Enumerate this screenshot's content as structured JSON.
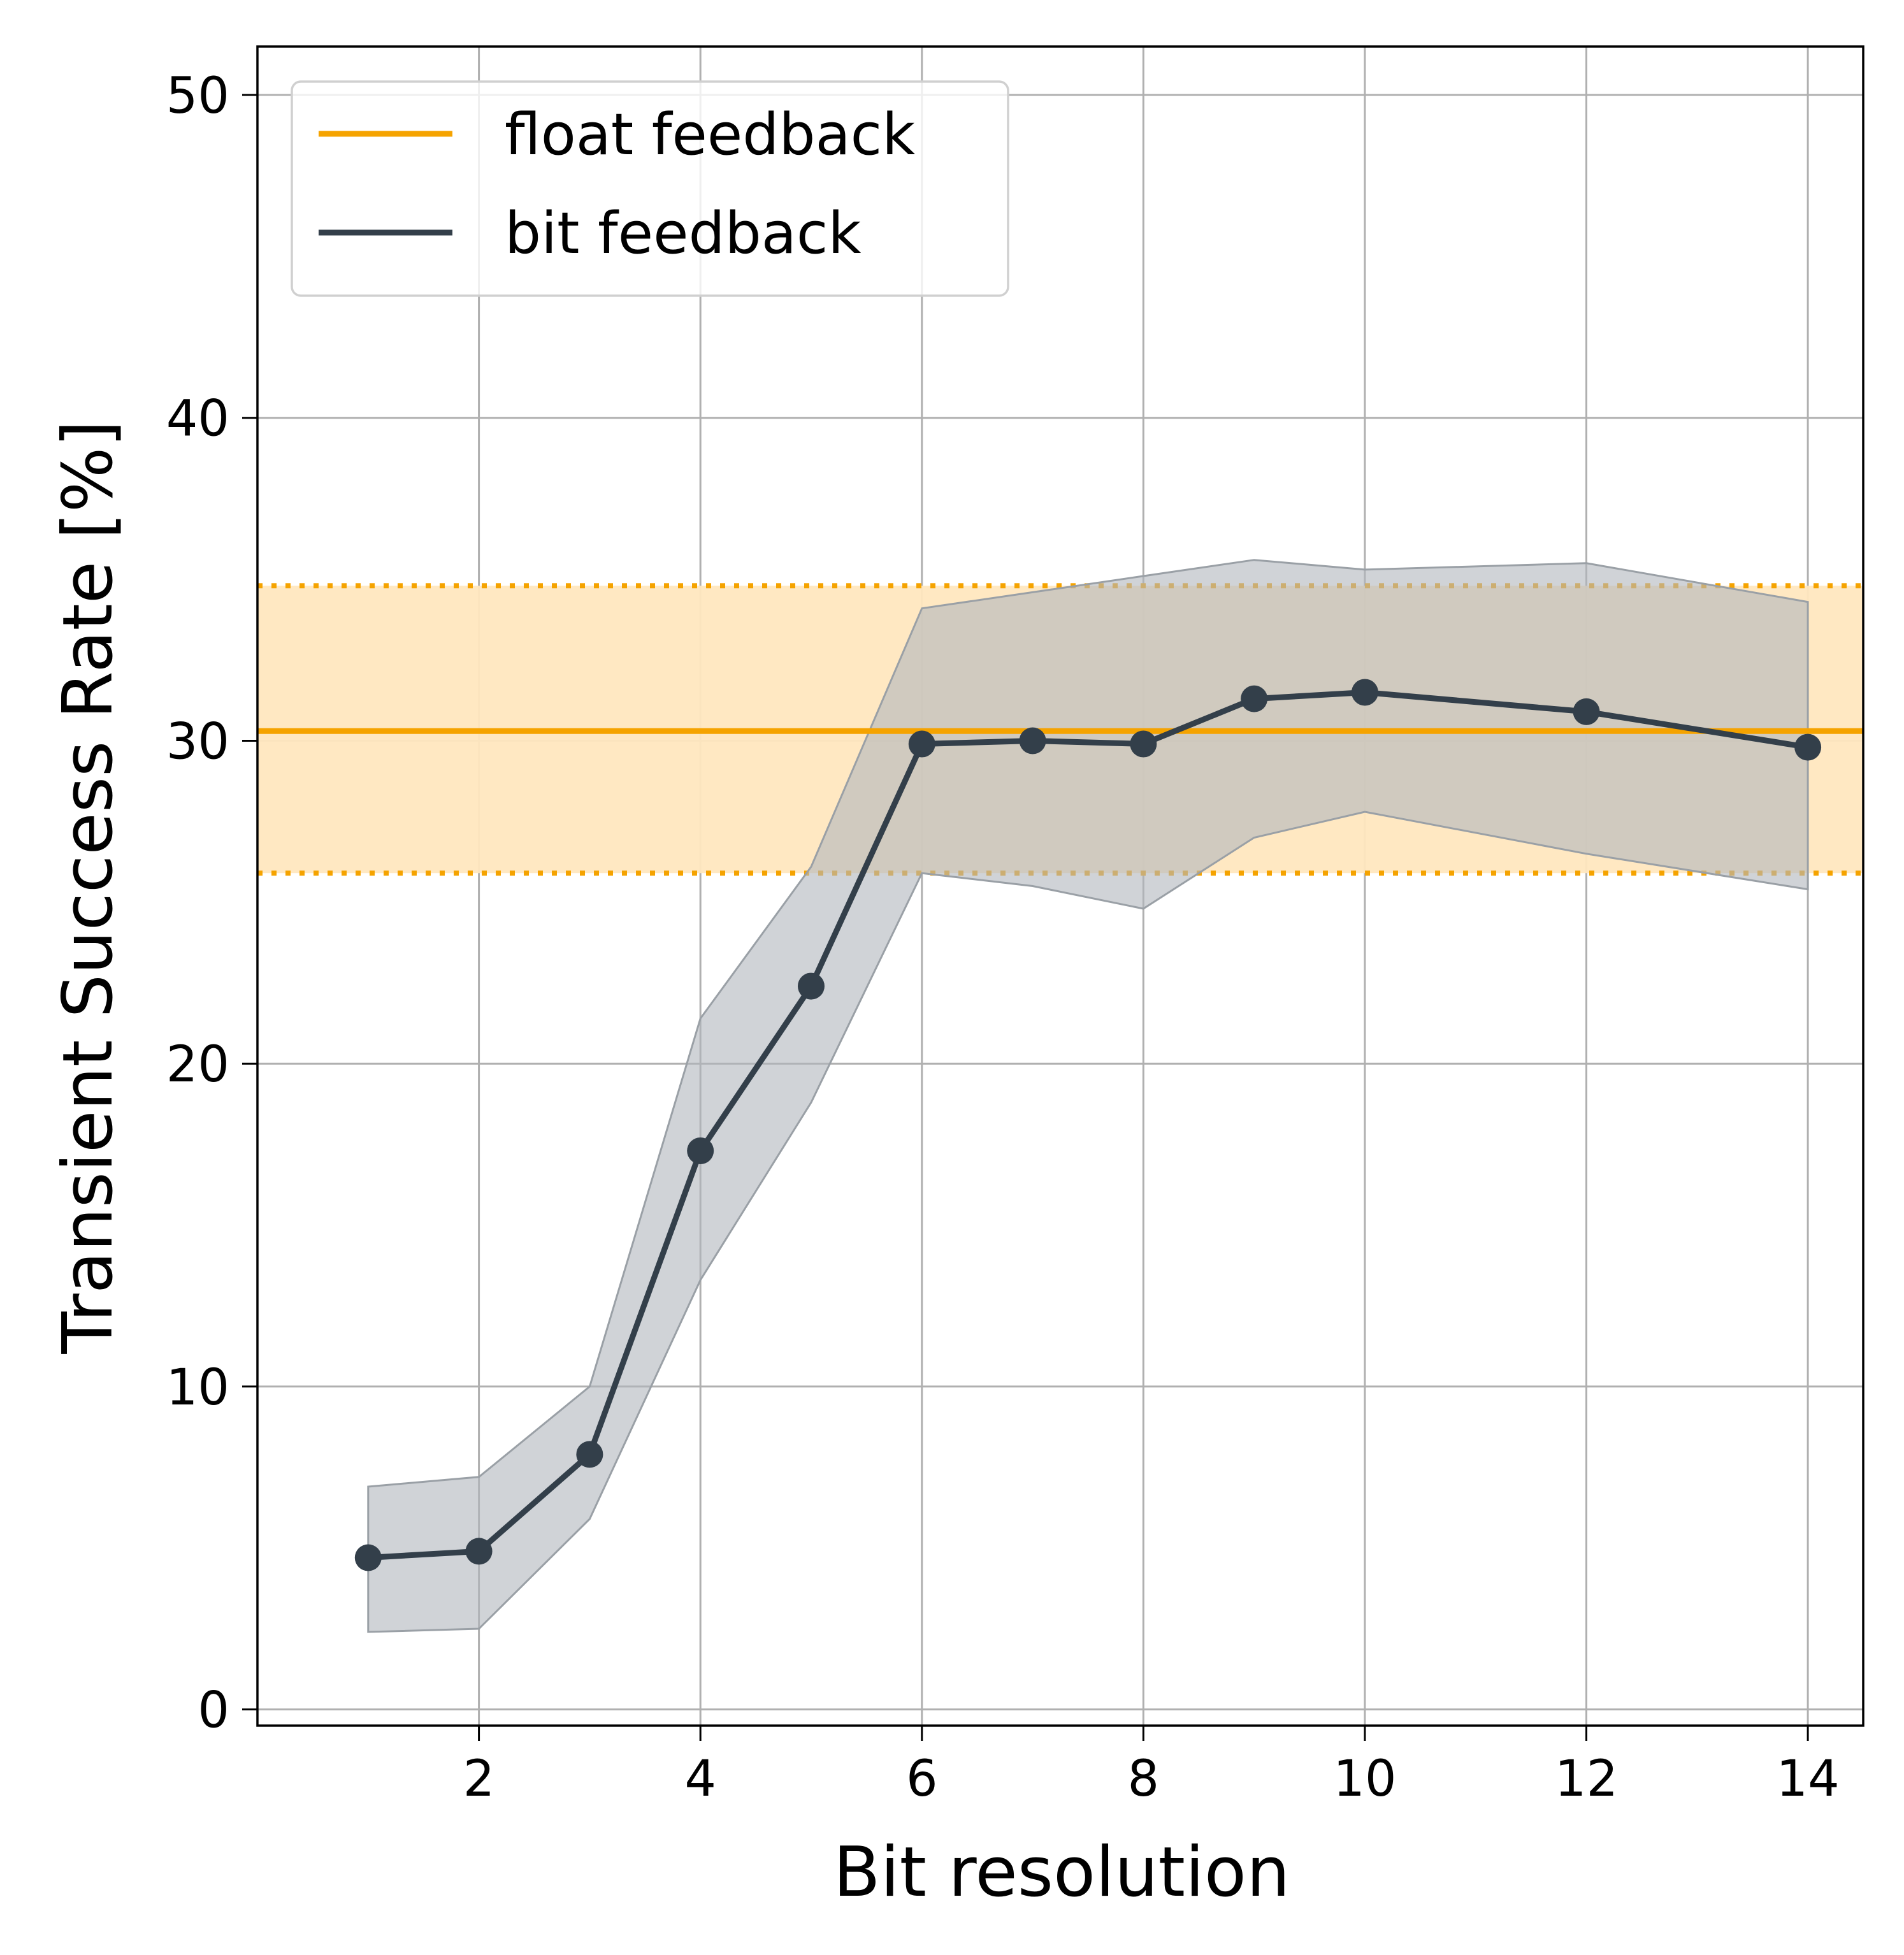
{
  "chart_data": {
    "type": "line",
    "title": "",
    "xlabel": "Bit resolution",
    "ylabel": "Transient Success Rate [%]",
    "xlim": [
      0.0,
      14.5
    ],
    "ylim": [
      -0.5,
      51.5
    ],
    "x_ticks": [
      2,
      4,
      6,
      8,
      10,
      12,
      14
    ],
    "x_tick_labels": [
      "2",
      "4",
      "6",
      "8",
      "10",
      "12",
      "14"
    ],
    "y_ticks": [
      0,
      10,
      20,
      30,
      40,
      50
    ],
    "y_tick_labels": [
      "0",
      "10",
      "20",
      "30",
      "40",
      "50"
    ],
    "grid": true,
    "legend_position": "upper-left",
    "series": [
      {
        "name": "float feedback",
        "kind": "hline",
        "color": "#f5a300",
        "value": 30.3,
        "band_lower": 25.9,
        "band_upper": 34.8,
        "band_color": "#ffe7bf"
      },
      {
        "name": "bit feedback",
        "kind": "line",
        "color": "#333f4a",
        "band_color": "#b0b6bc",
        "x": [
          1,
          2,
          3,
          4,
          5,
          6,
          7,
          8,
          9,
          10,
          12,
          14
        ],
        "values": [
          4.7,
          4.9,
          7.9,
          17.3,
          22.4,
          29.9,
          30.0,
          29.9,
          31.3,
          31.5,
          30.9,
          29.8
        ],
        "lower": [
          2.4,
          2.5,
          5.9,
          13.3,
          18.8,
          25.9,
          25.5,
          24.8,
          27.0,
          27.8,
          26.5,
          25.4
        ],
        "upper": [
          6.9,
          7.2,
          10.0,
          21.4,
          26.1,
          34.1,
          34.6,
          35.1,
          35.6,
          35.3,
          35.5,
          34.3
        ]
      }
    ]
  }
}
